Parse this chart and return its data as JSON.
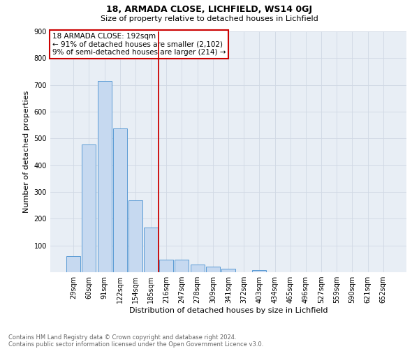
{
  "title1": "18, ARMADA CLOSE, LICHFIELD, WS14 0GJ",
  "title2": "Size of property relative to detached houses in Lichfield",
  "xlabel": "Distribution of detached houses by size in Lichfield",
  "ylabel": "Number of detached properties",
  "categories": [
    "29sqm",
    "60sqm",
    "91sqm",
    "122sqm",
    "154sqm",
    "185sqm",
    "216sqm",
    "247sqm",
    "278sqm",
    "309sqm",
    "341sqm",
    "372sqm",
    "403sqm",
    "434sqm",
    "465sqm",
    "496sqm",
    "527sqm",
    "559sqm",
    "590sqm",
    "621sqm",
    "652sqm"
  ],
  "values": [
    60,
    477,
    714,
    537,
    268,
    168,
    46,
    46,
    30,
    20,
    14,
    0,
    8,
    0,
    0,
    0,
    0,
    0,
    0,
    0,
    0
  ],
  "bar_color": "#c6d9f0",
  "bar_edge_color": "#5b9bd5",
  "grid_color": "#d0d8e4",
  "vline_x": 5.5,
  "vline_color": "#cc0000",
  "annotation_box_text": "18 ARMADA CLOSE: 192sqm\n← 91% of detached houses are smaller (2,102)\n9% of semi-detached houses are larger (214) →",
  "annotation_box_color": "#cc0000",
  "footnote1": "Contains HM Land Registry data © Crown copyright and database right 2024.",
  "footnote2": "Contains public sector information licensed under the Open Government Licence v3.0.",
  "ylim": [
    0,
    900
  ],
  "yticks": [
    0,
    100,
    200,
    300,
    400,
    500,
    600,
    700,
    800,
    900
  ],
  "bg_color": "#e8eef5",
  "fig_bg_color": "#ffffff",
  "title1_fontsize": 9,
  "title2_fontsize": 8,
  "xlabel_fontsize": 8,
  "ylabel_fontsize": 8,
  "tick_fontsize": 7,
  "footnote_fontsize": 6,
  "annot_fontsize": 7.5
}
